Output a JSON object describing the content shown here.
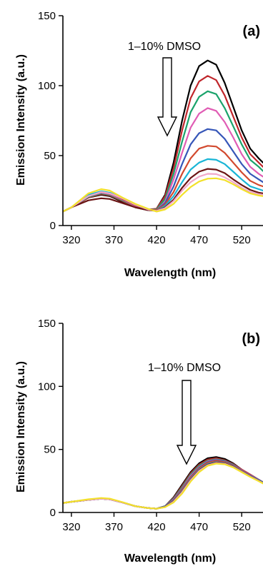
{
  "chart_data": [
    {
      "type": "line",
      "panel_label": "(a)",
      "xlabel": "Wavelength (nm)",
      "ylabel": "Emission Intensity (a.u.)",
      "xlim": [
        310,
        545
      ],
      "ylim": [
        0,
        150
      ],
      "x_ticks": [
        320,
        370,
        420,
        470,
        520
      ],
      "y_ticks": [
        0,
        50,
        100,
        150
      ],
      "annotation": "1–10% DMSO",
      "x": [
        310,
        320,
        340,
        355,
        365,
        380,
        395,
        410,
        420,
        430,
        440,
        450,
        460,
        470,
        480,
        490,
        500,
        510,
        520,
        530,
        540,
        545
      ],
      "series": [
        {
          "color": "#000000",
          "values": [
            10,
            13,
            20,
            22,
            21,
            17,
            13,
            11,
            12,
            22,
            45,
            75,
            100,
            114,
            118,
            115,
            102,
            85,
            68,
            55,
            48,
            45
          ]
        },
        {
          "color": "#c0262b",
          "values": [
            10,
            13,
            20,
            22.5,
            21.5,
            17.5,
            13.5,
            11.5,
            12,
            21,
            41,
            68,
            91,
            103,
            107,
            104,
            93,
            78,
            63,
            51,
            45,
            42
          ]
        },
        {
          "color": "#1aa36b",
          "values": [
            10,
            13,
            20.5,
            23,
            22,
            18,
            14,
            11.5,
            11.5,
            19,
            37,
            60,
            81,
            92,
            96,
            94,
            84,
            71,
            58,
            47,
            42,
            39
          ]
        },
        {
          "color": "#e05cb4",
          "values": [
            10,
            13,
            21,
            23.5,
            22.5,
            18.5,
            14,
            11.5,
            11,
            17,
            33,
            52,
            70,
            80,
            84,
            82,
            74,
            63,
            51,
            42,
            37,
            35
          ]
        },
        {
          "color": "#3656b8",
          "values": [
            10,
            13,
            21,
            24,
            23,
            19,
            14.5,
            11.5,
            11,
            16,
            28,
            44,
            58,
            66,
            69,
            68,
            62,
            53,
            44,
            37,
            33,
            31
          ]
        },
        {
          "color": "#d2492e",
          "values": [
            10,
            13,
            21.5,
            24,
            23,
            19,
            14.5,
            11.5,
            11,
            15,
            24,
            37,
            48,
            55,
            57,
            56.5,
            52,
            45,
            38,
            32,
            29,
            28
          ]
        },
        {
          "color": "#19b5d6",
          "values": [
            10,
            13,
            22,
            24.5,
            23.5,
            19.5,
            15,
            11.5,
            10.5,
            14,
            21,
            31,
            40,
            45,
            47.5,
            47,
            44,
            38.5,
            33,
            28,
            26,
            25
          ]
        },
        {
          "color": "#6b1414",
          "values": [
            10,
            13,
            18,
            19.5,
            19,
            16,
            13,
            11,
            10.5,
            13,
            18.5,
            27,
            34,
            38.5,
            40.5,
            40,
            37.5,
            33,
            29,
            25.5,
            23.5,
            23
          ]
        },
        {
          "color": "#f0a8c8",
          "values": [
            10,
            13,
            21,
            24,
            23,
            19.5,
            15,
            11.5,
            10.5,
            12.5,
            17.5,
            25,
            31,
            35,
            37,
            36.8,
            34.5,
            31,
            27,
            24,
            22.5,
            22
          ]
        },
        {
          "color": "#f2e12a",
          "values": [
            10,
            13,
            23,
            26,
            25,
            20,
            15.5,
            12,
            10,
            11.5,
            15.5,
            22,
            27.5,
            31.5,
            33.5,
            33.8,
            32.5,
            29.5,
            26,
            23,
            21.5,
            21
          ]
        }
      ]
    },
    {
      "type": "line",
      "panel_label": "(b)",
      "xlabel": "Wavelength (nm)",
      "ylabel": "Emission Intensity (a.u.)",
      "xlim": [
        310,
        545
      ],
      "ylim": [
        0,
        150
      ],
      "x_ticks": [
        320,
        370,
        420,
        470,
        520
      ],
      "y_ticks": [
        0,
        50,
        100,
        150
      ],
      "annotation": "1–10% DMSO",
      "x": [
        310,
        320,
        340,
        355,
        365,
        380,
        395,
        410,
        420,
        430,
        440,
        450,
        460,
        470,
        480,
        490,
        500,
        510,
        520,
        530,
        540,
        545
      ],
      "series": [
        {
          "color": "#000000",
          "values": [
            7.5,
            8.5,
            10,
            11,
            10.5,
            8,
            5,
            3.5,
            3,
            5,
            12,
            22,
            32,
            39,
            43,
            44,
            42.5,
            39,
            34,
            30,
            26,
            24
          ]
        },
        {
          "color": "#c0262b",
          "values": [
            7.5,
            8.5,
            10,
            11,
            10.5,
            8,
            5,
            3.5,
            3,
            5,
            11.5,
            21,
            31,
            38,
            42,
            43,
            41.5,
            38.5,
            34,
            30,
            26,
            24
          ]
        },
        {
          "color": "#1aa36b",
          "values": [
            7.5,
            8.5,
            10,
            11,
            10.5,
            8,
            5,
            3.5,
            3,
            5,
            11,
            20,
            30,
            37,
            41,
            42.2,
            41,
            38,
            33.5,
            29.5,
            26,
            24
          ]
        },
        {
          "color": "#e05cb4",
          "values": [
            7.5,
            8.5,
            10,
            11,
            10.5,
            8,
            5,
            3.5,
            3,
            4.8,
            10.5,
            19,
            29,
            36,
            40.5,
            41.8,
            40.6,
            37.6,
            33.5,
            29.5,
            26,
            24
          ]
        },
        {
          "color": "#3656b8",
          "values": [
            7.5,
            8.5,
            10,
            11,
            10.5,
            8,
            5,
            3.5,
            3,
            4.8,
            10,
            18.5,
            28,
            35.5,
            40,
            41.5,
            40.4,
            37.4,
            33.2,
            29.2,
            25.8,
            24
          ]
        },
        {
          "color": "#d2492e",
          "values": [
            7.5,
            8.5,
            10,
            11,
            10.5,
            8,
            5,
            3.5,
            3,
            4.6,
            9.5,
            18,
            27.5,
            35,
            39.5,
            41,
            40,
            37,
            33,
            29,
            25.6,
            23.8
          ]
        },
        {
          "color": "#19b5d6",
          "values": [
            7.5,
            8.5,
            10,
            11,
            10.5,
            8,
            5,
            3.5,
            3,
            4.5,
            9,
            17,
            26.5,
            34,
            38.5,
            40,
            39.3,
            36.5,
            32.6,
            28.8,
            25.4,
            23.6
          ]
        },
        {
          "color": "#6b1414",
          "values": [
            7.5,
            8.5,
            10,
            11,
            10.5,
            8,
            5,
            3.5,
            3,
            4.4,
            8.8,
            16.5,
            26,
            33.5,
            38,
            39.6,
            39,
            36.3,
            32.4,
            28.6,
            25.2,
            23.4
          ]
        },
        {
          "color": "#f0a8c8",
          "values": [
            7.5,
            8.5,
            10,
            11,
            10.5,
            8,
            5,
            3.5,
            3,
            4.3,
            8.5,
            16,
            25.5,
            33,
            37.5,
            39.2,
            38.6,
            36,
            32.2,
            28.4,
            25,
            23.2
          ]
        },
        {
          "color": "#f2e12a",
          "values": [
            7.5,
            8.5,
            10.5,
            11.5,
            11,
            8.2,
            5,
            3.5,
            3,
            4.2,
            8,
            15,
            24.5,
            32,
            37,
            38.8,
            38.2,
            35.8,
            32,
            28.2,
            24.8,
            23
          ]
        }
      ]
    }
  ]
}
